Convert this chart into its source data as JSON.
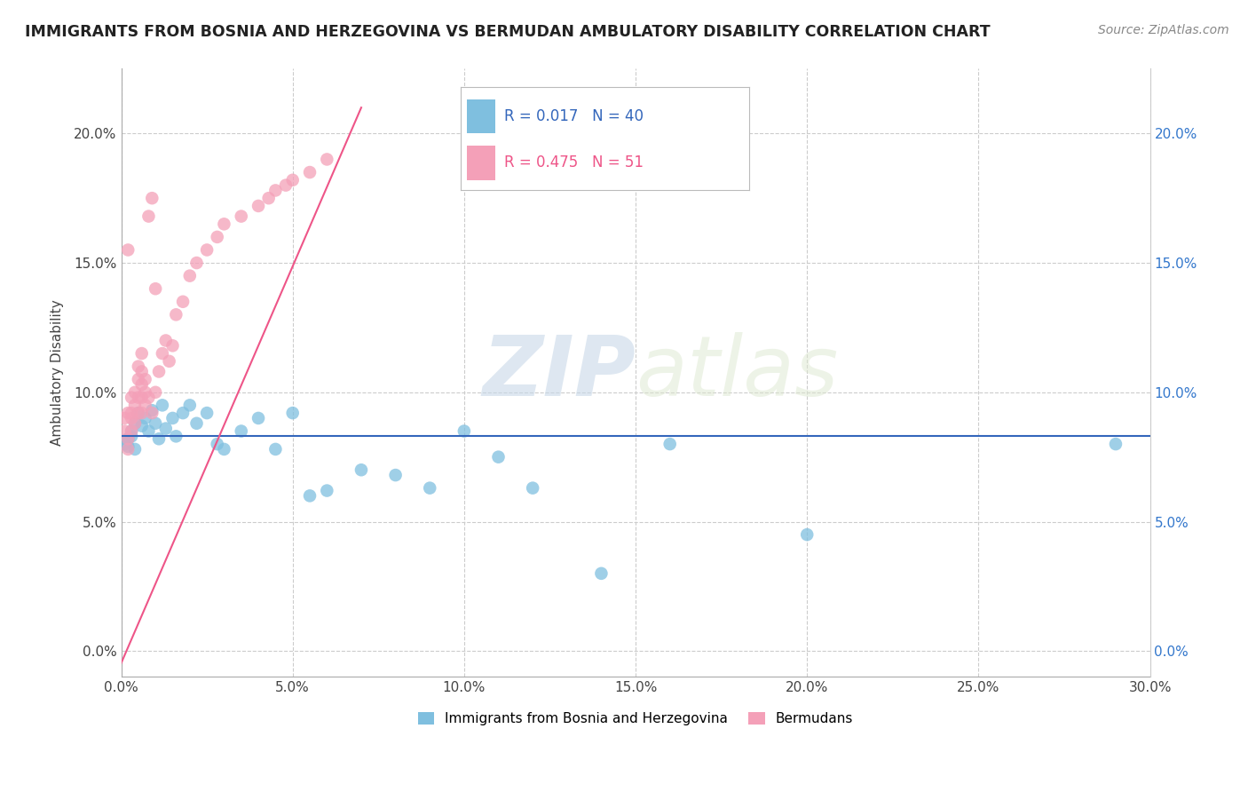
{
  "title": "IMMIGRANTS FROM BOSNIA AND HERZEGOVINA VS BERMUDAN AMBULATORY DISABILITY CORRELATION CHART",
  "source": "Source: ZipAtlas.com",
  "ylabel": "Ambulatory Disability",
  "xlim": [
    0.0,
    0.3
  ],
  "ylim": [
    -0.01,
    0.225
  ],
  "xticks": [
    0.0,
    0.05,
    0.1,
    0.15,
    0.2,
    0.25,
    0.3
  ],
  "xtick_labels": [
    "0.0%",
    "5.0%",
    "10.0%",
    "15.0%",
    "20.0%",
    "25.0%",
    "30.0%"
  ],
  "yticks": [
    0.0,
    0.05,
    0.1,
    0.15,
    0.2
  ],
  "ytick_labels": [
    "0.0%",
    "5.0%",
    "10.0%",
    "15.0%",
    "20.0%"
  ],
  "blue_R": 0.017,
  "blue_N": 40,
  "pink_R": 0.475,
  "pink_N": 51,
  "blue_color": "#7fbfdf",
  "pink_color": "#f4a0b8",
  "blue_line_color": "#3366bb",
  "pink_line_color": "#ee5588",
  "watermark_zip": "ZIP",
  "watermark_atlas": "atlas",
  "legend_blue": "Immigrants from Bosnia and Herzegovina",
  "legend_pink": "Bermudans",
  "blue_scatter_x": [
    0.001,
    0.002,
    0.002,
    0.003,
    0.003,
    0.004,
    0.004,
    0.005,
    0.006,
    0.007,
    0.008,
    0.009,
    0.01,
    0.011,
    0.012,
    0.013,
    0.015,
    0.016,
    0.018,
    0.02,
    0.022,
    0.025,
    0.028,
    0.03,
    0.035,
    0.04,
    0.045,
    0.05,
    0.055,
    0.06,
    0.07,
    0.08,
    0.09,
    0.1,
    0.11,
    0.12,
    0.14,
    0.16,
    0.2,
    0.29
  ],
  "blue_scatter_y": [
    0.08,
    0.082,
    0.079,
    0.085,
    0.083,
    0.088,
    0.078,
    0.092,
    0.087,
    0.09,
    0.085,
    0.093,
    0.088,
    0.082,
    0.095,
    0.086,
    0.09,
    0.083,
    0.092,
    0.095,
    0.088,
    0.092,
    0.08,
    0.078,
    0.085,
    0.09,
    0.078,
    0.092,
    0.06,
    0.062,
    0.07,
    0.068,
    0.063,
    0.085,
    0.075,
    0.063,
    0.03,
    0.08,
    0.045,
    0.08
  ],
  "pink_scatter_x": [
    0.001,
    0.001,
    0.002,
    0.002,
    0.002,
    0.002,
    0.003,
    0.003,
    0.003,
    0.003,
    0.004,
    0.004,
    0.004,
    0.005,
    0.005,
    0.005,
    0.005,
    0.006,
    0.006,
    0.006,
    0.006,
    0.006,
    0.007,
    0.007,
    0.007,
    0.008,
    0.008,
    0.009,
    0.009,
    0.01,
    0.01,
    0.011,
    0.012,
    0.013,
    0.014,
    0.015,
    0.016,
    0.018,
    0.02,
    0.022,
    0.025,
    0.028,
    0.03,
    0.035,
    0.04,
    0.043,
    0.045,
    0.048,
    0.05,
    0.055,
    0.06
  ],
  "pink_scatter_y": [
    0.085,
    0.09,
    0.092,
    0.082,
    0.078,
    0.155,
    0.085,
    0.09,
    0.092,
    0.098,
    0.088,
    0.095,
    0.1,
    0.092,
    0.098,
    0.105,
    0.11,
    0.092,
    0.098,
    0.103,
    0.108,
    0.115,
    0.095,
    0.1,
    0.105,
    0.098,
    0.168,
    0.092,
    0.175,
    0.1,
    0.14,
    0.108,
    0.115,
    0.12,
    0.112,
    0.118,
    0.13,
    0.135,
    0.145,
    0.15,
    0.155,
    0.16,
    0.165,
    0.168,
    0.172,
    0.175,
    0.178,
    0.18,
    0.182,
    0.185,
    0.19
  ],
  "blue_line_x": [
    0.0,
    0.3
  ],
  "blue_line_y": [
    0.083,
    0.083
  ],
  "pink_line_x": [
    0.0,
    0.065
  ],
  "pink_line_y": [
    0.0,
    0.195
  ]
}
